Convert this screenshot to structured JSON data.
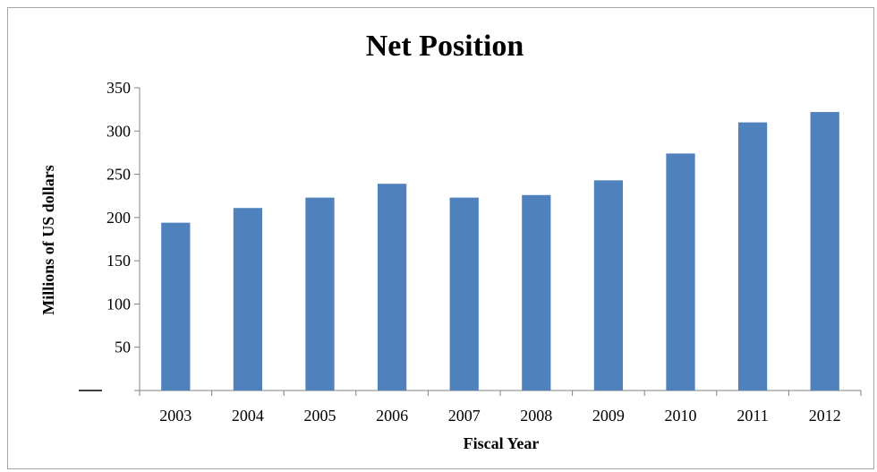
{
  "chart_data": {
    "type": "bar",
    "title": "Net Position",
    "xlabel": "Fiscal Year",
    "ylabel": "Millions of US dollars",
    "categories": [
      "2003",
      "2004",
      "2005",
      "2006",
      "2007",
      "2008",
      "2009",
      "2010",
      "2011",
      "2012"
    ],
    "values": [
      194,
      211,
      223,
      239,
      223,
      226,
      243,
      274,
      310,
      322
    ],
    "ylim": [
      0,
      350
    ],
    "yticks": [
      "",
      "50",
      "100",
      "150",
      "200",
      "250",
      "300",
      "350"
    ],
    "ytick_values": [
      0,
      50,
      100,
      150,
      200,
      250,
      300,
      350
    ],
    "grid": false,
    "legend": "none",
    "bar_color": "#4f81bd"
  }
}
